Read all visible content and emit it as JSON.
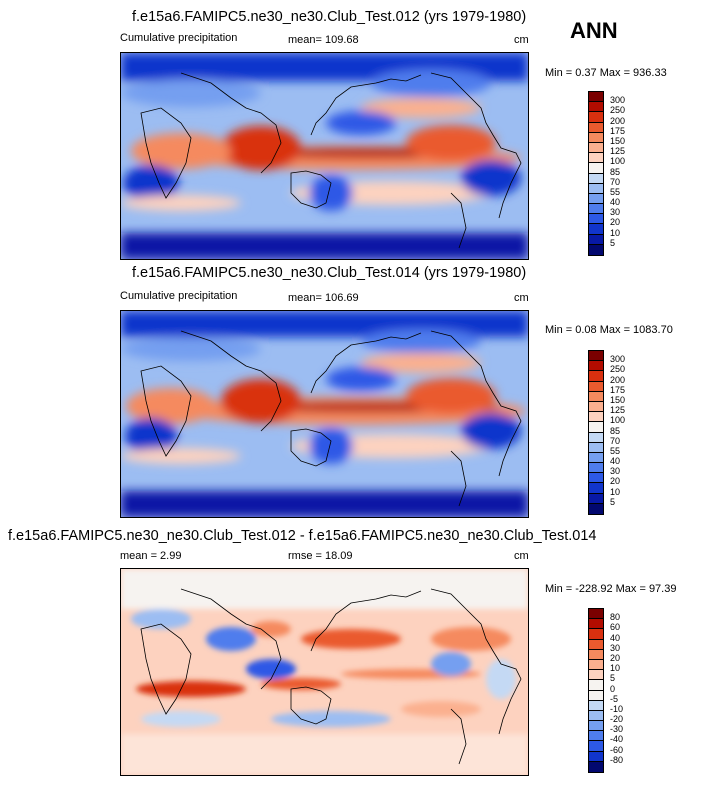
{
  "season": "ANN",
  "panels": [
    {
      "title": "f.e15a6.FAMIPC5.ne30_ne30.Club_Test.012 (yrs 1979-1980)",
      "left_label": "Cumulative precipitation",
      "stat": "mean= 109.68",
      "unit": "cm",
      "minmax": "Min =   0.37 Max = 936.33",
      "levels": [
        "300",
        "250",
        "200",
        "175",
        "150",
        "125",
        "100",
        "85",
        "70",
        "55",
        "40",
        "30",
        "20",
        "10",
        "5"
      ],
      "colors": [
        "#7a0000",
        "#b20c00",
        "#d9300f",
        "#ea5a2e",
        "#f58a5e",
        "#fbb08f",
        "#fdd2bf",
        "#f6f3f0",
        "#c4d9f4",
        "#9cbdf2",
        "#759ff0",
        "#4f7ded",
        "#2d59e6",
        "#1135cc",
        "#0819a6",
        "#02086f"
      ]
    },
    {
      "title": "f.e15a6.FAMIPC5.ne30_ne30.Club_Test.014 (yrs 1979-1980)",
      "left_label": "Cumulative precipitation",
      "stat": "mean= 106.69",
      "unit": "cm",
      "minmax": "Min =   0.08 Max = 1083.70",
      "levels": [
        "300",
        "250",
        "200",
        "175",
        "150",
        "125",
        "100",
        "85",
        "70",
        "55",
        "40",
        "30",
        "20",
        "10",
        "5"
      ],
      "colors": [
        "#7a0000",
        "#b20c00",
        "#d9300f",
        "#ea5a2e",
        "#f58a5e",
        "#fbb08f",
        "#fdd2bf",
        "#f6f3f0",
        "#c4d9f4",
        "#9cbdf2",
        "#759ff0",
        "#4f7ded",
        "#2d59e6",
        "#1135cc",
        "#0819a6",
        "#02086f"
      ]
    },
    {
      "title": "f.e15a6.FAMIPC5.ne30_ne30.Club_Test.012 - f.e15a6.FAMIPC5.ne30_ne30.Club_Test.014",
      "left_label": "mean =   2.99",
      "stat": "rmse =  18.09",
      "unit": "cm",
      "minmax": "Min = -228.92 Max =  97.39",
      "levels": [
        "80",
        "60",
        "40",
        "30",
        "20",
        "10",
        "5",
        "0",
        "-5",
        "-10",
        "-20",
        "-30",
        "-40",
        "-60",
        "-80"
      ],
      "colors": [
        "#7a0000",
        "#b20c00",
        "#d9300f",
        "#ea5a2e",
        "#f58a5e",
        "#fbb08f",
        "#fdd2bf",
        "#f6f3f0",
        "#f6f3f0",
        "#c4d9f4",
        "#9cbdf2",
        "#759ff0",
        "#4f7ded",
        "#2d59e6",
        "#1135cc",
        "#02086f"
      ]
    }
  ],
  "chart_data": [
    {
      "type": "heatmap",
      "title": "f.e15a6.FAMIPC5.ne30_ne30.Club_Test.012 (yrs 1979-1980)",
      "subtitle": "Cumulative precipitation",
      "mean": 109.68,
      "min": 0.37,
      "max": 936.33,
      "units": "cm",
      "contour_levels": [
        5,
        10,
        20,
        30,
        40,
        55,
        70,
        85,
        100,
        125,
        150,
        175,
        200,
        250,
        300
      ],
      "projection": "cylindrical equidistant global map"
    },
    {
      "type": "heatmap",
      "title": "f.e15a6.FAMIPC5.ne30_ne30.Club_Test.014 (yrs 1979-1980)",
      "subtitle": "Cumulative precipitation",
      "mean": 106.69,
      "min": 0.08,
      "max": 1083.7,
      "units": "cm",
      "contour_levels": [
        5,
        10,
        20,
        30,
        40,
        55,
        70,
        85,
        100,
        125,
        150,
        175,
        200,
        250,
        300
      ],
      "projection": "cylindrical equidistant global map"
    },
    {
      "type": "heatmap",
      "title": "f.e15a6.FAMIPC5.ne30_ne30.Club_Test.012 - f.e15a6.FAMIPC5.ne30_ne30.Club_Test.014",
      "mean": 2.99,
      "rmse": 18.09,
      "min": -228.92,
      "max": 97.39,
      "units": "cm",
      "contour_levels": [
        -80,
        -60,
        -40,
        -30,
        -20,
        -10,
        -5,
        0,
        5,
        10,
        20,
        30,
        40,
        60,
        80
      ],
      "projection": "cylindrical equidistant global map"
    }
  ]
}
